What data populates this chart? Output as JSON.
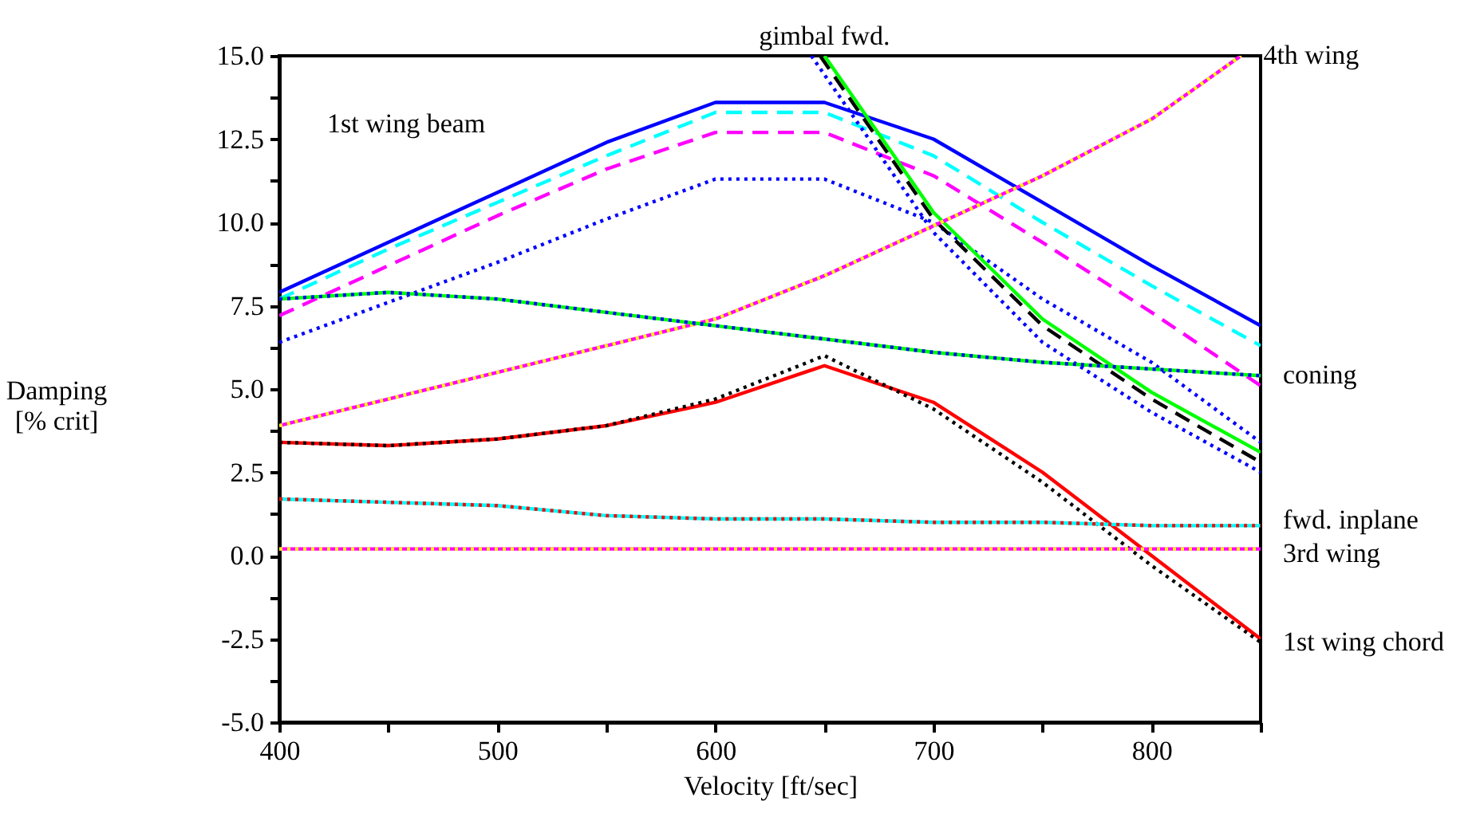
{
  "chart_data": {
    "type": "line",
    "xlabel": "Velocity [ft/sec]",
    "ylabel": "Damping\n[% crit]",
    "xlim": [
      400,
      850
    ],
    "ylim": [
      -5,
      15
    ],
    "xticks": [
      400,
      {
        "value": 450,
        "label": null
      },
      500,
      {
        "value": 550,
        "label": null
      },
      600,
      {
        "value": 650,
        "label": null
      },
      700,
      {
        "value": 750,
        "label": null
      },
      800,
      {
        "value": 850,
        "label": null
      }
    ],
    "yticks": [
      {
        "value": 15,
        "label": "15.0"
      },
      {
        "value": 13.75,
        "label": null
      },
      {
        "value": 12.5,
        "label": "12.5"
      },
      {
        "value": 11.25,
        "label": null
      },
      {
        "value": 10,
        "label": "10.0"
      },
      {
        "value": 8.75,
        "label": null
      },
      {
        "value": 7.5,
        "label": "7.5"
      },
      {
        "value": 6.25,
        "label": null
      },
      {
        "value": 5,
        "label": "5.0"
      },
      {
        "value": 3.75,
        "label": null
      },
      {
        "value": 2.5,
        "label": "2.5"
      },
      {
        "value": 1.25,
        "label": null
      },
      {
        "value": 0,
        "label": "0.0"
      },
      {
        "value": -1.25,
        "label": null
      },
      {
        "value": -2.5,
        "label": "-2.5"
      },
      {
        "value": -3.75,
        "label": null
      },
      {
        "value": -5,
        "label": "-5.0"
      }
    ],
    "grid": false,
    "marker": "none",
    "series": [
      {
        "color": "#0000ff",
        "line_style": "solid",
        "x": [
          400,
          450,
          500,
          550,
          600,
          650,
          700,
          750,
          800,
          850
        ],
        "values": [
          7.9,
          9.4,
          10.9,
          12.4,
          13.6,
          13.6,
          12.5,
          10.6,
          8.7,
          6.9
        ]
      },
      {
        "color": "#00ffff",
        "line_style": "dashed",
        "x": [
          400,
          450,
          500,
          550,
          600,
          650,
          700,
          750,
          800,
          850
        ],
        "values": [
          7.7,
          9.2,
          10.6,
          12.0,
          13.3,
          13.3,
          12.0,
          10.0,
          8.1,
          6.3
        ]
      },
      {
        "color": "#ff00ff",
        "line_style": "dashed",
        "x": [
          400,
          450,
          500,
          550,
          600,
          650,
          700,
          750,
          800,
          850
        ],
        "values": [
          7.2,
          8.7,
          10.2,
          11.6,
          12.7,
          12.7,
          11.4,
          9.4,
          7.3,
          5.1
        ]
      },
      {
        "color": "#0000ff",
        "line_style": "dotted",
        "x": [
          400,
          450,
          500,
          550,
          600,
          650,
          700,
          750,
          800,
          850
        ],
        "values": [
          6.4,
          7.6,
          8.8,
          10.1,
          11.3,
          11.3,
          10.0,
          7.7,
          5.8,
          3.4
        ]
      },
      {
        "color": "#00ff00",
        "line_style": "solid",
        "x": [
          650,
          700,
          750,
          800,
          850
        ],
        "values": [
          15,
          10.3,
          7.1,
          4.9,
          3.1
        ]
      },
      {
        "color": "#000000",
        "line_style": "dashed",
        "x": [
          648,
          700,
          750,
          800,
          850
        ],
        "values": [
          15,
          10.1,
          6.9,
          4.7,
          2.8
        ]
      },
      {
        "color": "#0000ff",
        "line_style": "dotted",
        "x": [
          644,
          700,
          750,
          800,
          850
        ],
        "values": [
          15,
          9.7,
          6.4,
          4.3,
          2.5
        ]
      },
      {
        "color": "#ff00ff",
        "line_style": "solid",
        "x": [
          400,
          450,
          500,
          550,
          600,
          650,
          700,
          750,
          800,
          841
        ],
        "values": [
          3.9,
          4.7,
          5.5,
          6.3,
          7.1,
          8.4,
          9.9,
          11.4,
          13.1,
          15
        ]
      },
      {
        "color": "#ffff00",
        "line_style": "dotted",
        "x": [
          400,
          450,
          500,
          550,
          600,
          650,
          700,
          750,
          800,
          841
        ],
        "values": [
          3.9,
          4.7,
          5.5,
          6.3,
          7.1,
          8.4,
          9.9,
          11.4,
          13.1,
          15
        ]
      },
      {
        "color": "#00ff00",
        "line_style": "solid",
        "x": [
          400,
          450,
          500,
          550,
          600,
          650,
          700,
          750,
          800,
          850
        ],
        "values": [
          7.7,
          7.9,
          7.7,
          7.3,
          6.9,
          6.5,
          6.1,
          5.8,
          5.6,
          5.4
        ]
      },
      {
        "color": "#0000ff",
        "line_style": "dotted",
        "x": [
          400,
          450,
          500,
          550,
          600,
          650,
          700,
          750,
          800,
          850
        ],
        "values": [
          7.7,
          7.9,
          7.7,
          7.3,
          6.9,
          6.5,
          6.1,
          5.8,
          5.6,
          5.4
        ]
      },
      {
        "color": "#ff0000",
        "line_style": "solid",
        "x": [
          400,
          450,
          500,
          550,
          600,
          650,
          700,
          750,
          800,
          850
        ],
        "values": [
          3.4,
          3.3,
          3.5,
          3.9,
          4.6,
          5.7,
          4.6,
          2.5,
          0.0,
          -2.5
        ]
      },
      {
        "color": "#000000",
        "line_style": "dotted",
        "x": [
          400,
          450,
          500,
          550,
          600,
          650,
          700,
          750,
          800,
          850
        ],
        "values": [
          3.4,
          3.3,
          3.5,
          3.9,
          4.7,
          6.0,
          4.4,
          2.2,
          -0.3,
          -2.6
        ]
      },
      {
        "color": "#00ffff",
        "line_style": "solid",
        "x": [
          400,
          450,
          500,
          550,
          600,
          650,
          700,
          750,
          800,
          850
        ],
        "values": [
          1.7,
          1.6,
          1.5,
          1.2,
          1.1,
          1.1,
          1.0,
          1.0,
          0.9,
          0.9
        ]
      },
      {
        "color": "#ff0000",
        "line_style": "dotted",
        "x": [
          400,
          450,
          500,
          550,
          600,
          650,
          700,
          750,
          800,
          850
        ],
        "values": [
          1.7,
          1.6,
          1.5,
          1.2,
          1.1,
          1.1,
          1.0,
          1.0,
          0.9,
          0.9
        ]
      },
      {
        "color": "#ff00ff",
        "line_style": "solid",
        "x": [
          400,
          850
        ],
        "values": [
          0.2,
          0.2
        ]
      },
      {
        "color": "#ffff00",
        "line_style": "dotted",
        "x": [
          400,
          850
        ],
        "values": [
          0.2,
          0.2
        ]
      }
    ],
    "annotations": [
      "1st wing beam",
      {
        "text": "gimbal fwd.",
        "x": 650,
        "y": 15
      },
      {
        "text": "4th wing",
        "x": 841,
        "y": 15
      },
      {
        "text": "coning",
        "x": 850,
        "y": 5.4
      },
      {
        "text": "fwd. inplane",
        "x": 850,
        "y": 0.9
      },
      {
        "text": "3rd wing",
        "x": 850,
        "y": 0.2
      },
      {
        "text": "1st wing chord",
        "x": 850,
        "y": -2.6
      }
    ]
  }
}
